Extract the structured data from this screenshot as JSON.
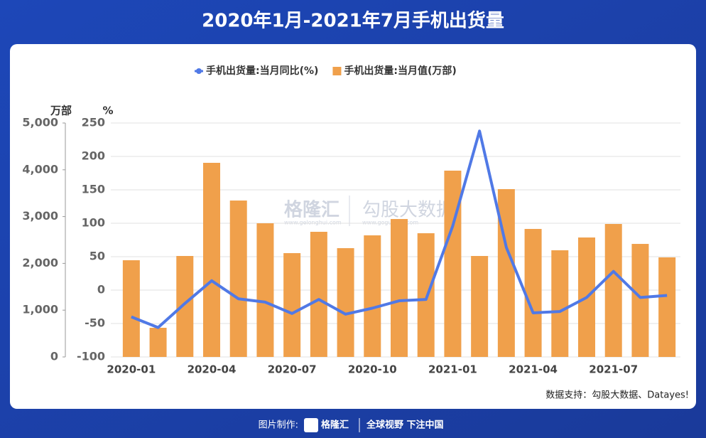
{
  "chart_data": {
    "type": "bar-line",
    "title": "2020年1月-2021年7月手机出货量",
    "categories": [
      "2020-01",
      null,
      null,
      "2020-04",
      null,
      null,
      "2020-07",
      null,
      null,
      "2020-10",
      null,
      null,
      "2021-01",
      null,
      null,
      "2021-04",
      null,
      null,
      "2021-07",
      null,
      null
    ],
    "series": [
      {
        "name": "手机出货量:当月同比(%)",
        "color": "#5079e6",
        "type": "line",
        "axis": "y2",
        "values": [
          -40,
          -56,
          -20,
          14,
          -13,
          -18,
          -35,
          -14,
          -36,
          -27,
          -16,
          -14,
          96,
          238,
          64,
          -34,
          -32,
          -11,
          28,
          -11,
          -8
        ]
      },
      {
        "name": "手机出货量:当月值(万部)",
        "color": "#f0a04b",
        "type": "bar",
        "axis": "y",
        "values": [
          2067,
          623,
          2158,
          4149,
          3343,
          2857,
          2219,
          2675,
          2325,
          2599,
          2948,
          2644,
          3982,
          2158,
          3587,
          2736,
          2280,
          2553,
          2842,
          2416,
          2128
        ]
      }
    ],
    "ylabel": "万部",
    "y2label": "%",
    "ylim": [
      0,
      5000
    ],
    "yticks": [
      0,
      {
        "value": 1000,
        "label": "1,000"
      },
      {
        "value": 2000,
        "label": "2,000"
      },
      {
        "value": 3000,
        "label": "3,000"
      },
      {
        "value": 4000,
        "label": "4,000"
      },
      {
        "value": 5000,
        "label": "5,000"
      }
    ],
    "y2lim": [
      -100,
      250
    ],
    "y2ticks": [
      -100,
      -50,
      0,
      50,
      100,
      150,
      200,
      250
    ],
    "grid": true,
    "source": "数据支持：勾股大数据、Datayes!",
    "watermark": {
      "brand": "格隆汇",
      "brand_url": "www.gelonghui.com",
      "partner": "勾股大数据",
      "partner_url": "www.gogudata.com"
    }
  },
  "footer": {
    "made_by": "图片制作:",
    "brand": "格隆汇",
    "slogan": "全球视野 下注中国"
  }
}
